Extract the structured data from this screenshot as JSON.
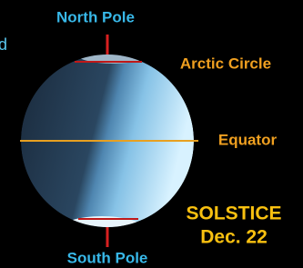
{
  "labels": {
    "edge_fragment": "d",
    "north_pole": "North Pole",
    "arctic_circle": "Arctic Circle",
    "equator": "Equator",
    "solstice": "SOLSTICE",
    "date": "Dec. 22",
    "south_pole": "South Pole"
  }
}
